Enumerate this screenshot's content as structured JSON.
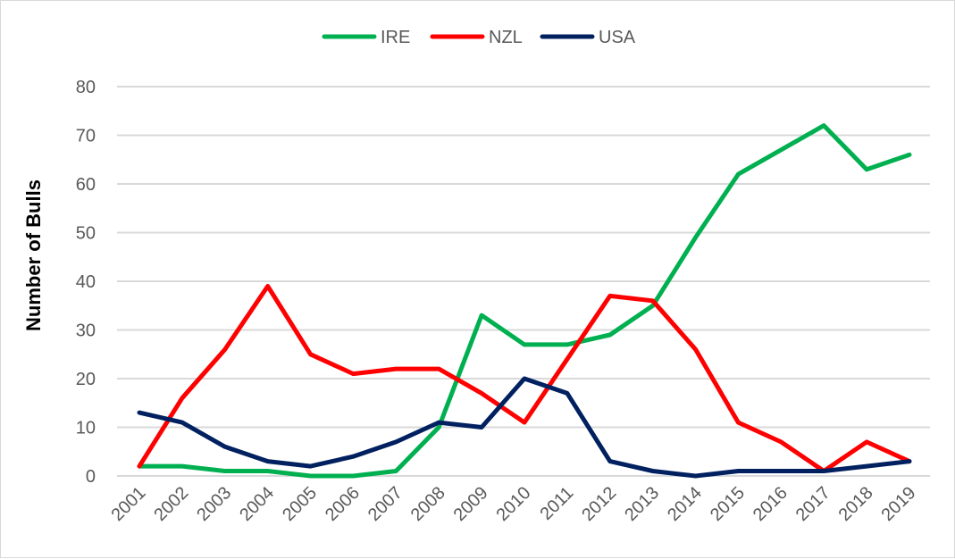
{
  "chart_data": {
    "type": "line",
    "title": "",
    "xlabel": "",
    "ylabel": "Number of Bulls",
    "ylim": [
      0,
      80
    ],
    "yticks": [
      0,
      10,
      20,
      30,
      40,
      50,
      60,
      70,
      80
    ],
    "grid": true,
    "legend_position": "top",
    "categories": [
      "2001",
      "2002",
      "2003",
      "2004",
      "2005",
      "2006",
      "2007",
      "2008",
      "2009",
      "2010",
      "2011",
      "2012",
      "2013",
      "2014",
      "2015",
      "2016",
      "2017",
      "2018",
      "2019"
    ],
    "series": [
      {
        "name": "IRE",
        "color": "#00b050",
        "values": [
          2,
          2,
          1,
          1,
          0,
          0,
          1,
          10,
          33,
          27,
          27,
          29,
          35,
          49,
          62,
          67,
          72,
          63,
          66
        ]
      },
      {
        "name": "NZL",
        "color": "#ff0000",
        "values": [
          2,
          16,
          26,
          39,
          25,
          21,
          22,
          22,
          17,
          11,
          24,
          37,
          36,
          26,
          11,
          7,
          1,
          7,
          3
        ]
      },
      {
        "name": "USA",
        "color": "#002060",
        "values": [
          13,
          11,
          6,
          3,
          2,
          4,
          7,
          11,
          10,
          20,
          17,
          3,
          1,
          0,
          1,
          1,
          1,
          2,
          3
        ]
      }
    ]
  }
}
